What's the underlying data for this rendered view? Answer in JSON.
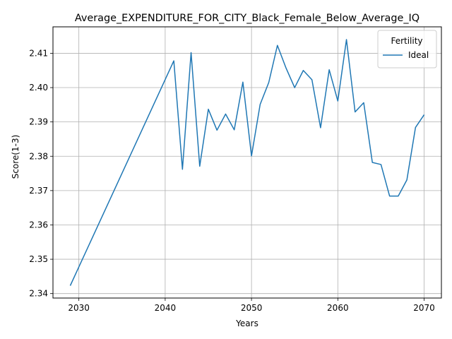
{
  "chart_data": {
    "type": "line",
    "title": "Average_EXPENDITURE_FOR_CITY_Black_Female_Below_Average_IQ",
    "xlabel": "Years",
    "ylabel": "Score(1-3)",
    "xlim": [
      2027,
      2072
    ],
    "ylim": [
      2.3387,
      2.4177
    ],
    "x_ticks": [
      2030,
      2040,
      2050,
      2060,
      2070
    ],
    "y_ticks": [
      2.34,
      2.35,
      2.36,
      2.37,
      2.38,
      2.39,
      2.4,
      2.41
    ],
    "x_tick_labels": [
      "2030",
      "2040",
      "2050",
      "2060",
      "2070"
    ],
    "y_tick_labels": [
      "2.34",
      "2.35",
      "2.36",
      "2.37",
      "2.38",
      "2.39",
      "2.40",
      "2.41"
    ],
    "grid": true,
    "legend": {
      "title": "Fertility",
      "placement": "top-right"
    },
    "series": [
      {
        "name": "Ideal",
        "color": "#1f77b4",
        "x": [
          2029,
          2041,
          2042,
          2043,
          2044,
          2045,
          2046,
          2047,
          2048,
          2049,
          2050,
          2051,
          2052,
          2053,
          2054,
          2055,
          2056,
          2057,
          2058,
          2059,
          2060,
          2061,
          2062,
          2063,
          2064,
          2065,
          2066,
          2067,
          2068,
          2069,
          2070
        ],
        "y": [
          2.3423,
          2.4078,
          2.3762,
          2.4102,
          2.3771,
          2.3937,
          2.3876,
          2.3923,
          2.3877,
          2.4016,
          2.3801,
          2.3951,
          2.4015,
          2.4123,
          2.4057,
          2.4,
          2.405,
          2.4023,
          2.3883,
          2.4052,
          2.3961,
          2.414,
          2.3929,
          2.3956,
          2.3782,
          2.3776,
          2.3684,
          2.3684,
          2.3731,
          2.3884,
          2.3921
        ]
      }
    ]
  }
}
